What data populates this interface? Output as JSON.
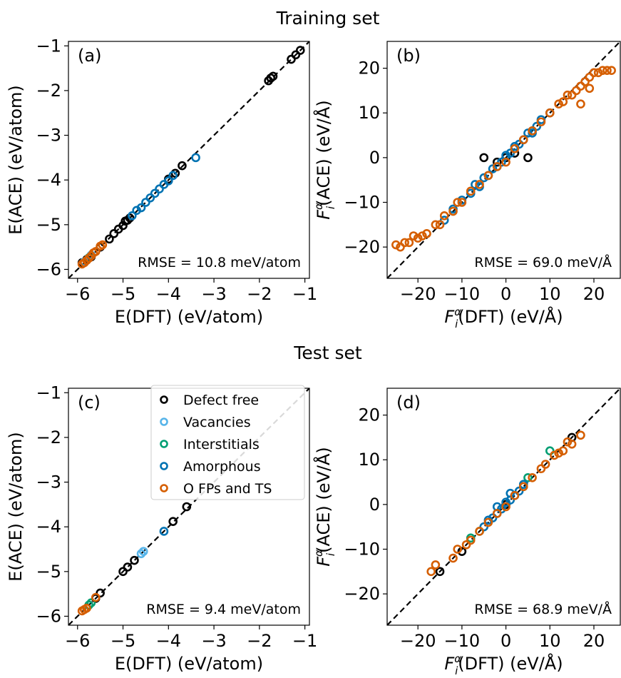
{
  "figure": {
    "section_titles": [
      "Training set",
      "Test set"
    ]
  },
  "colors": {
    "defect_free": "#000000",
    "vacancies": "#56b4e9",
    "interstitials": "#009e73",
    "amorphous": "#0072b2",
    "ofps_ts": "#d55e00",
    "diagonal": "#000000"
  },
  "legend": {
    "entries": [
      "Defect free",
      "Vacancies",
      "Interstitials",
      "Amorphous",
      "O FPs and TS"
    ]
  },
  "chart_data": [
    {
      "type": "scatter",
      "panel_label": "(a)",
      "xlabel": "E(DFT) (eV/atom)",
      "ylabel": "E(ACE) (eV/atom)",
      "xlim": [
        -6.2,
        -0.9
      ],
      "ylim": [
        -6.2,
        -0.9
      ],
      "xticks": [
        -6,
        -5,
        -4,
        -3,
        -2,
        -1
      ],
      "yticks": [
        -6,
        -5,
        -4,
        -3,
        -2,
        -1
      ],
      "xtick_labels": [
        "−6",
        "−5",
        "−4",
        "−3",
        "−2",
        "−1"
      ],
      "ytick_labels": [
        "−6",
        "−5",
        "−4",
        "−3",
        "−2",
        "−1"
      ],
      "annotation": "RMSE = 10.8 meV/atom",
      "diagonal": true,
      "series": [
        {
          "key": "defect_free",
          "points": [
            [
              -5.9,
              -5.85
            ],
            [
              -5.8,
              -5.78
            ],
            [
              -5.7,
              -5.72
            ],
            [
              -5.5,
              -5.5
            ],
            [
              -5.3,
              -5.32
            ],
            [
              -5.2,
              -5.2
            ],
            [
              -5.1,
              -5.1
            ],
            [
              -5.0,
              -5.02
            ],
            [
              -4.95,
              -4.92
            ],
            [
              -4.9,
              -4.9
            ],
            [
              -4.85,
              -4.85
            ],
            [
              -4.0,
              -3.98
            ],
            [
              -3.85,
              -3.85
            ],
            [
              -3.7,
              -3.68
            ],
            [
              -1.8,
              -1.78
            ],
            [
              -1.75,
              -1.72
            ],
            [
              -1.7,
              -1.68
            ],
            [
              -1.3,
              -1.3
            ],
            [
              -1.2,
              -1.2
            ],
            [
              -1.1,
              -1.1
            ]
          ]
        },
        {
          "key": "vacancies",
          "points": [
            [
              -5.85,
              -5.83
            ],
            [
              -5.7,
              -5.68
            ]
          ]
        },
        {
          "key": "interstitials",
          "points": [
            [
              -5.75,
              -5.74
            ]
          ]
        },
        {
          "key": "amorphous",
          "points": [
            [
              -4.8,
              -4.8
            ],
            [
              -4.7,
              -4.68
            ],
            [
              -4.6,
              -4.62
            ],
            [
              -4.5,
              -4.5
            ],
            [
              -4.4,
              -4.4
            ],
            [
              -4.3,
              -4.3
            ],
            [
              -4.2,
              -4.2
            ],
            [
              -4.1,
              -4.1
            ],
            [
              -4.0,
              -4.02
            ],
            [
              -3.9,
              -3.9
            ],
            [
              -3.4,
              -3.5
            ]
          ]
        },
        {
          "key": "ofps_ts",
          "points": [
            [
              -5.9,
              -5.88
            ],
            [
              -5.85,
              -5.85
            ],
            [
              -5.8,
              -5.8
            ],
            [
              -5.75,
              -5.75
            ],
            [
              -5.7,
              -5.7
            ],
            [
              -5.65,
              -5.63
            ],
            [
              -5.6,
              -5.6
            ],
            [
              -5.5,
              -5.48
            ],
            [
              -5.45,
              -5.45
            ]
          ]
        }
      ]
    },
    {
      "type": "scatter",
      "panel_label": "(b)",
      "xlabel": "F_i^α(DFT) (eV/Å)",
      "ylabel": "F_i^α(ACE) (eV/Å)",
      "xlim": [
        -27,
        26
      ],
      "ylim": [
        -27,
        26
      ],
      "xticks": [
        -20,
        -10,
        0,
        10,
        20
      ],
      "yticks": [
        -20,
        -10,
        0,
        10,
        20
      ],
      "xtick_labels": [
        "−20",
        "−10",
        "0",
        "10",
        "20"
      ],
      "ytick_labels": [
        "−20",
        "−10",
        "0",
        "10",
        "20"
      ],
      "annotation": "RMSE = 69.0 meV/Å",
      "diagonal": true,
      "series": [
        {
          "key": "defect_free",
          "points": [
            [
              -5,
              0
            ],
            [
              5,
              0
            ],
            [
              -2,
              -1
            ],
            [
              2,
              1
            ],
            [
              0,
              0
            ]
          ]
        },
        {
          "key": "amorphous",
          "points": [
            [
              -10,
              -9.5
            ],
            [
              -8,
              -8
            ],
            [
              -6,
              -6.5
            ],
            [
              -5,
              -4.5
            ],
            [
              -4,
              -4
            ],
            [
              -3,
              -2.5
            ],
            [
              -2,
              -2
            ],
            [
              -1,
              -1
            ],
            [
              0,
              0.5
            ],
            [
              1,
              1
            ],
            [
              2,
              2.5
            ],
            [
              3,
              3
            ],
            [
              4,
              4
            ],
            [
              5,
              5.5
            ],
            [
              6,
              6
            ],
            [
              7,
              7
            ],
            [
              8,
              8.5
            ],
            [
              -12,
              -11.5
            ],
            [
              -14,
              -14
            ],
            [
              10,
              10
            ],
            [
              -7,
              -6
            ],
            [
              6,
              5.5
            ]
          ]
        },
        {
          "key": "ofps_ts",
          "points": [
            [
              -25,
              -19.5
            ],
            [
              -24,
              -20
            ],
            [
              -22,
              -19
            ],
            [
              -21,
              -17.5
            ],
            [
              -20,
              -18
            ],
            [
              -18,
              -17
            ],
            [
              -16,
              -15
            ],
            [
              -15,
              -15
            ],
            [
              -14,
              -13
            ],
            [
              -12,
              -12
            ],
            [
              -11,
              -10
            ],
            [
              -10,
              -10
            ],
            [
              -8,
              -7.5
            ],
            [
              -6,
              -6
            ],
            [
              -4,
              -4
            ],
            [
              -2,
              -2
            ],
            [
              0,
              -1
            ],
            [
              2,
              2
            ],
            [
              4,
              4
            ],
            [
              6,
              6
            ],
            [
              8,
              8
            ],
            [
              10,
              10
            ],
            [
              12,
              12
            ],
            [
              13,
              12.5
            ],
            [
              14,
              14
            ],
            [
              15,
              14
            ],
            [
              16,
              15
            ],
            [
              17,
              16
            ],
            [
              18,
              17
            ],
            [
              19,
              18
            ],
            [
              20,
              19
            ],
            [
              21,
              19
            ],
            [
              22,
              19.5
            ],
            [
              23,
              19.5
            ],
            [
              24,
              19.5
            ],
            [
              19,
              15.5
            ],
            [
              17,
              12
            ],
            [
              -23,
              -19
            ],
            [
              -19,
              -17.5
            ]
          ]
        }
      ]
    },
    {
      "type": "scatter",
      "panel_label": "(c)",
      "xlabel": "E(DFT) (eV/atom)",
      "ylabel": "E(ACE) (eV/atom)",
      "xlim": [
        -6.2,
        -0.9
      ],
      "ylim": [
        -6.2,
        -0.9
      ],
      "xticks": [
        -6,
        -5,
        -4,
        -3,
        -2,
        -1
      ],
      "yticks": [
        -6,
        -5,
        -4,
        -3,
        -2,
        -1
      ],
      "xtick_labels": [
        "−6",
        "−5",
        "−4",
        "−3",
        "−2",
        "−1"
      ],
      "ytick_labels": [
        "−6",
        "−5",
        "−4",
        "−3",
        "−2",
        "−1"
      ],
      "annotation": "RMSE = 9.4 meV/atom",
      "diagonal": true,
      "legend_location": "top-right",
      "series": [
        {
          "key": "defect_free",
          "points": [
            [
              -5.6,
              -5.6
            ],
            [
              -5.5,
              -5.48
            ],
            [
              -5.0,
              -5.0
            ],
            [
              -4.9,
              -4.9
            ],
            [
              -4.75,
              -4.75
            ],
            [
              -3.9,
              -3.88
            ],
            [
              -3.6,
              -3.55
            ]
          ]
        },
        {
          "key": "vacancies",
          "points": [
            [
              -4.6,
              -4.6
            ],
            [
              -4.55,
              -4.55
            ]
          ]
        },
        {
          "key": "interstitials",
          "points": [
            [
              -5.75,
              -5.75
            ],
            [
              -5.7,
              -5.7
            ]
          ]
        },
        {
          "key": "amorphous",
          "points": [
            [
              -4.1,
              -4.1
            ]
          ]
        },
        {
          "key": "ofps_ts",
          "points": [
            [
              -5.9,
              -5.88
            ],
            [
              -5.85,
              -5.85
            ],
            [
              -5.8,
              -5.82
            ],
            [
              -5.6,
              -5.58
            ]
          ]
        }
      ]
    },
    {
      "type": "scatter",
      "panel_label": "(d)",
      "xlabel": "F_i^α(DFT) (eV/Å)",
      "ylabel": "F_i^α(ACE) (eV/Å)",
      "xlim": [
        -27,
        26
      ],
      "ylim": [
        -27,
        26
      ],
      "xticks": [
        -20,
        -10,
        0,
        10,
        20
      ],
      "yticks": [
        -20,
        -10,
        0,
        10,
        20
      ],
      "xtick_labels": [
        "−20",
        "−10",
        "0",
        "10",
        "20"
      ],
      "ytick_labels": [
        "−20",
        "−10",
        "0",
        "10",
        "20"
      ],
      "annotation": "RMSE = 68.9 meV/Å",
      "diagonal": true,
      "series": [
        {
          "key": "defect_free",
          "points": [
            [
              -15,
              -15
            ],
            [
              15,
              15
            ],
            [
              -10,
              -10.5
            ],
            [
              0,
              0
            ]
          ]
        },
        {
          "key": "interstitials",
          "points": [
            [
              -8,
              -7.5
            ],
            [
              -6,
              -6
            ],
            [
              4,
              4
            ],
            [
              5,
              6
            ],
            [
              10,
              12
            ]
          ]
        },
        {
          "key": "amorphous",
          "points": [
            [
              -5,
              -5
            ],
            [
              -4,
              -3.5
            ],
            [
              -3,
              -3
            ],
            [
              -2,
              -2
            ],
            [
              -1,
              -1
            ],
            [
              0,
              0.5
            ],
            [
              1,
              1
            ],
            [
              2,
              2
            ],
            [
              3,
              3
            ],
            [
              4,
              4.5
            ],
            [
              -2,
              -0.5
            ],
            [
              1,
              2.5
            ]
          ]
        },
        {
          "key": "ofps_ts",
          "points": [
            [
              -17,
              -15
            ],
            [
              -16,
              -13.5
            ],
            [
              -12,
              -12
            ],
            [
              -11,
              -10
            ],
            [
              -9,
              -9
            ],
            [
              -8,
              -8
            ],
            [
              -6,
              -6
            ],
            [
              -4,
              -4
            ],
            [
              -2,
              -2
            ],
            [
              0,
              -0.5
            ],
            [
              2,
              2
            ],
            [
              4,
              4
            ],
            [
              6,
              6
            ],
            [
              8,
              8
            ],
            [
              9,
              9
            ],
            [
              11,
              11
            ],
            [
              12,
              11.5
            ],
            [
              14,
              14
            ],
            [
              15,
              13.5
            ],
            [
              17,
              15.5
            ],
            [
              13,
              12
            ]
          ]
        }
      ]
    }
  ]
}
